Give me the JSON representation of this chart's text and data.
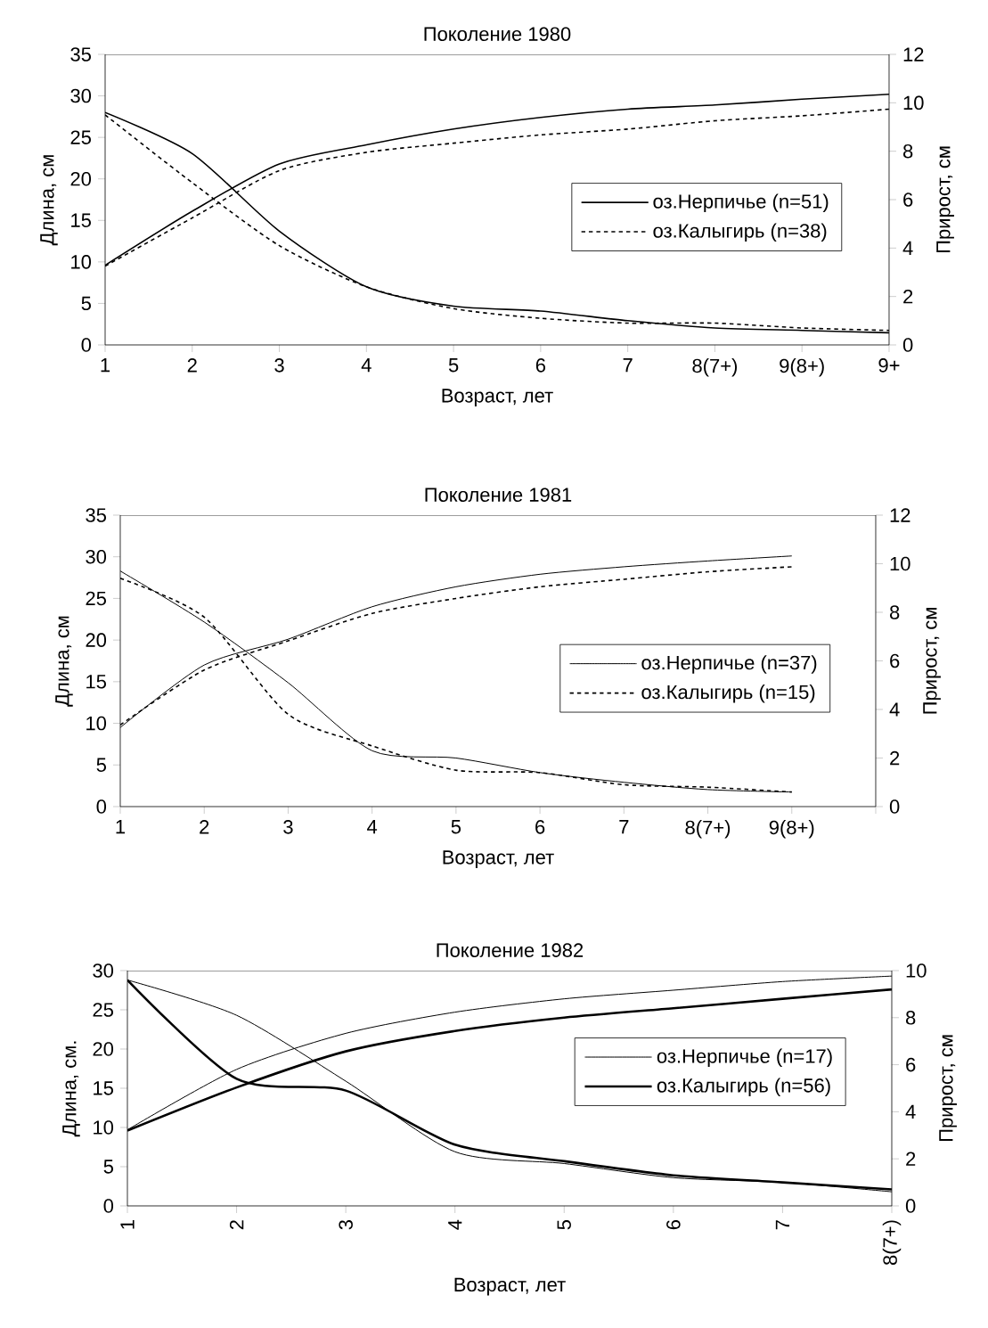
{
  "chart_data": [
    {
      "type": "line",
      "title": "Поколение 1980",
      "xlabel": "Возраст, лет",
      "ylabel": "Длина, см",
      "y2label": "Прирост, см",
      "categories": [
        "1",
        "2",
        "3",
        "4",
        "5",
        "6",
        "7",
        "8(7+)",
        "9(8+)",
        "9+"
      ],
      "ylim": [
        0,
        35
      ],
      "yticks": [
        0,
        5,
        10,
        15,
        20,
        25,
        30,
        35
      ],
      "y2lim": [
        0,
        12
      ],
      "y2ticks": [
        0,
        2,
        4,
        6,
        8,
        10,
        12
      ],
      "legend": "right",
      "series": [
        {
          "name": "оз.Нерпичье (n=51)",
          "color": "#000000",
          "line_style": "solid",
          "values": [
            9.6,
            16.1,
            21.8,
            24.1,
            26.0,
            27.4,
            28.4,
            28.9,
            29.6,
            30.2
          ]
        },
        {
          "name": "оз.Калыгирь (n=38)",
          "color": "#000000",
          "line_style": "dashed",
          "values": [
            9.5,
            15.3,
            21.0,
            23.2,
            24.3,
            25.3,
            26.0,
            27.0,
            27.6,
            28.4
          ]
        },
        {
          "color": "#000000",
          "line_style": "solid",
          "axis": "y2",
          "values": [
            9.6,
            7.9,
            4.7,
            2.4,
            1.6,
            1.4,
            1.0,
            0.7,
            0.6,
            0.5
          ]
        },
        {
          "color": "#000000",
          "line_style": "dashed",
          "axis": "y2",
          "values": [
            9.5,
            6.7,
            4.1,
            2.4,
            1.5,
            1.1,
            0.9,
            0.9,
            0.7,
            0.6
          ]
        }
      ]
    },
    {
      "type": "line",
      "title": "Поколение 1981",
      "xlabel": "Возраст, лет",
      "ylabel": "Длина, см",
      "y2label": "Прирост, см",
      "categories": [
        "1",
        "2",
        "3",
        "4",
        "5",
        "6",
        "7",
        "8(7+)",
        "9(8+)",
        null
      ],
      "ylim": [
        0,
        35
      ],
      "yticks": [
        0,
        5,
        10,
        15,
        20,
        25,
        30,
        35
      ],
      "y2lim": [
        0,
        12
      ],
      "y2ticks": [
        0,
        2,
        4,
        6,
        8,
        10,
        12
      ],
      "legend": "right",
      "series": [
        {
          "name": "оз.Нерпичье (n=37)",
          "color": "#000000",
          "line_style": "solid",
          "values": [
            9.5,
            17.0,
            20.1,
            24.0,
            26.4,
            27.9,
            28.8,
            29.5,
            30.1,
            null
          ]
        },
        {
          "name": "оз.Калыгирь (n=15)",
          "color": "#000000",
          "line_style": "dashed",
          "values": [
            9.8,
            16.4,
            19.9,
            23.2,
            25.0,
            26.4,
            27.3,
            28.2,
            28.8,
            null
          ]
        },
        {
          "color": "#000000",
          "line_style": "solid",
          "axis": "y2",
          "values": [
            9.7,
            7.6,
            5.1,
            2.3,
            2.0,
            1.4,
            1.0,
            0.7,
            0.6,
            null
          ]
        },
        {
          "color": "#000000",
          "line_style": "dashed",
          "axis": "y2",
          "values": [
            9.4,
            7.8,
            3.8,
            2.5,
            1.5,
            1.4,
            0.9,
            0.8,
            0.6,
            null
          ]
        }
      ]
    },
    {
      "type": "line",
      "title": "Поколение 1982",
      "xlabel": "Возраст, лет",
      "ylabel": "Длина, см.",
      "y2label": "Прирост, см",
      "categories": [
        "1",
        "2",
        "3",
        "4",
        "5",
        "6",
        "7",
        "8(7+)"
      ],
      "ylim": [
        0,
        30
      ],
      "yticks": [
        0,
        5,
        10,
        15,
        20,
        25,
        30
      ],
      "y2lim": [
        0,
        10
      ],
      "y2ticks": [
        0,
        2,
        4,
        6,
        8,
        10
      ],
      "legend": "top right",
      "series": [
        {
          "name": "оз.Нерпичье (n=17)",
          "color": "#000000",
          "line_style": "solid",
          "values": [
            9.7,
            17.4,
            22.0,
            24.7,
            26.4,
            27.5,
            28.6,
            29.3
          ]
        },
        {
          "name": "оз.Калыгирь (n=56)",
          "color": "#000000",
          "line_style": "solid",
          "values": [
            9.6,
            15.1,
            19.7,
            22.3,
            24.0,
            25.2,
            26.4,
            27.6
          ]
        },
        {
          "color": "#000000",
          "line_style": "solid",
          "axis": "y2",
          "values": [
            9.6,
            8.1,
            5.3,
            2.3,
            1.8,
            1.2,
            1.0,
            0.6
          ]
        },
        {
          "color": "#000000",
          "line_style": "solid",
          "axis": "y2",
          "values": [
            9.6,
            5.4,
            4.9,
            2.6,
            1.9,
            1.3,
            1.0,
            0.7
          ]
        }
      ]
    }
  ]
}
